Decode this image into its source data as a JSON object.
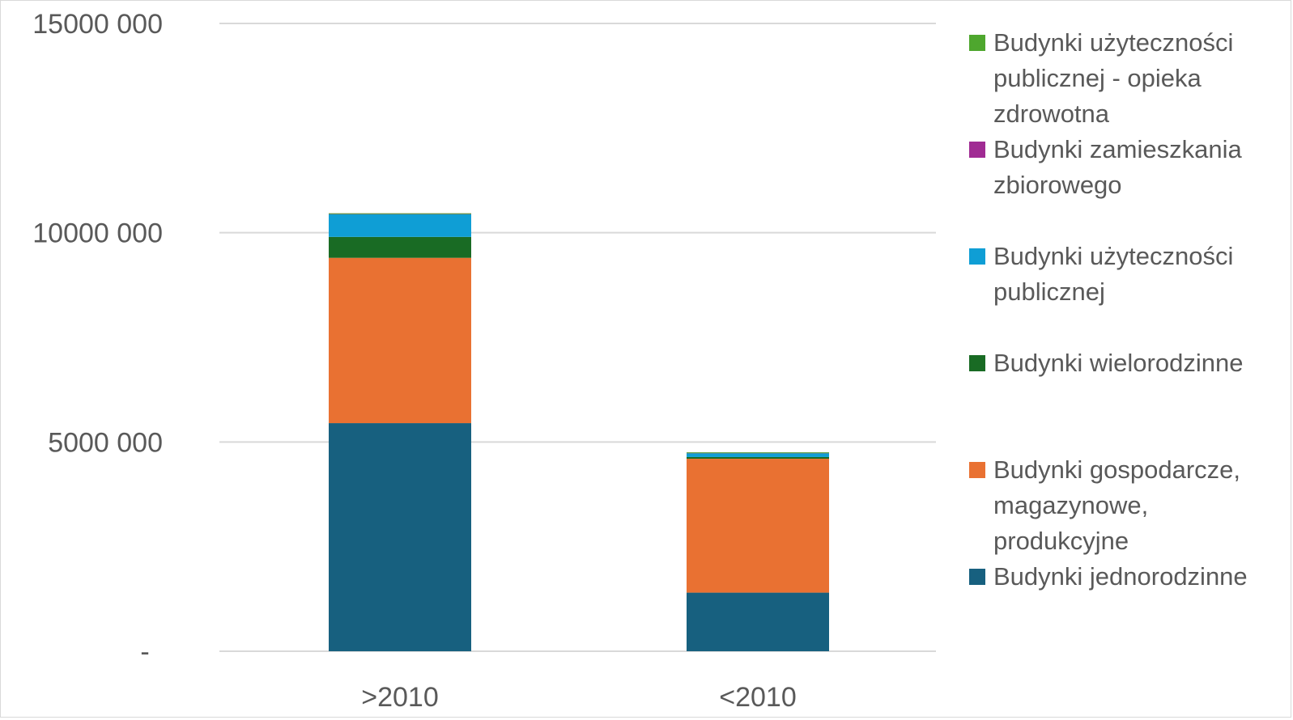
{
  "chart_data": {
    "type": "bar",
    "stacked": true,
    "categories": [
      ">2010",
      "<2010"
    ],
    "series": [
      {
        "name": "Budynki jednorodzinne",
        "color": "#17607f",
        "values": [
          5450000,
          1400000
        ]
      },
      {
        "name": "Budynki gospodarcze, magazynowe, produkcyjne",
        "color": "#e97132",
        "values": [
          3950000,
          3200000
        ]
      },
      {
        "name": "Budynki wielorodzinne",
        "color": "#196b24",
        "values": [
          500000,
          40000
        ]
      },
      {
        "name": "Budynki użyteczności publicznej",
        "color": "#0f9ed5",
        "values": [
          540000,
          90000
        ]
      },
      {
        "name": "Budynki zamieszkania zbiorowego",
        "color": "#a02b93",
        "values": [
          5000,
          2000
        ]
      },
      {
        "name": "Budynki użyteczności publicznej - opieka zdrowotna",
        "color": "#4ea72e",
        "values": [
          5000,
          2000
        ]
      }
    ],
    "y_ticks": [
      {
        "value": 0,
        "label": "-"
      },
      {
        "value": 5000000,
        "label": "5000 000"
      },
      {
        "value": 10000000,
        "label": "10000 000"
      },
      {
        "value": 15000000,
        "label": "15000 000"
      }
    ],
    "ylim": [
      0,
      15000000
    ],
    "grid": true,
    "legend_position": "right",
    "title": "",
    "xlabel": "",
    "ylabel": ""
  },
  "legend": {
    "items": [
      {
        "lines": [
          "Budynki użyteczności",
          "publicznej - opieka",
          "zdrowotna"
        ],
        "color": "#4ea72e",
        "icon": "green-square"
      },
      {
        "lines": [
          "Budynki zamieszkania",
          "zbiorowego"
        ],
        "color": "#a02b93",
        "icon": "purple-square"
      },
      {
        "lines": [
          "Budynki użyteczności",
          "publicznej"
        ],
        "color": "#0f9ed5",
        "icon": "blue-square"
      },
      {
        "lines": [
          "Budynki wielorodzinne"
        ],
        "color": "#196b24",
        "icon": "dark-green-square"
      },
      {
        "lines": [
          "Budynki gospodarcze,",
          "magazynowe,",
          "produkcyjne"
        ],
        "color": "#e97132",
        "icon": "orange-square"
      },
      {
        "lines": [
          "Budynki jednorodzinne"
        ],
        "color": "#17607f",
        "icon": "teal-square"
      }
    ]
  }
}
